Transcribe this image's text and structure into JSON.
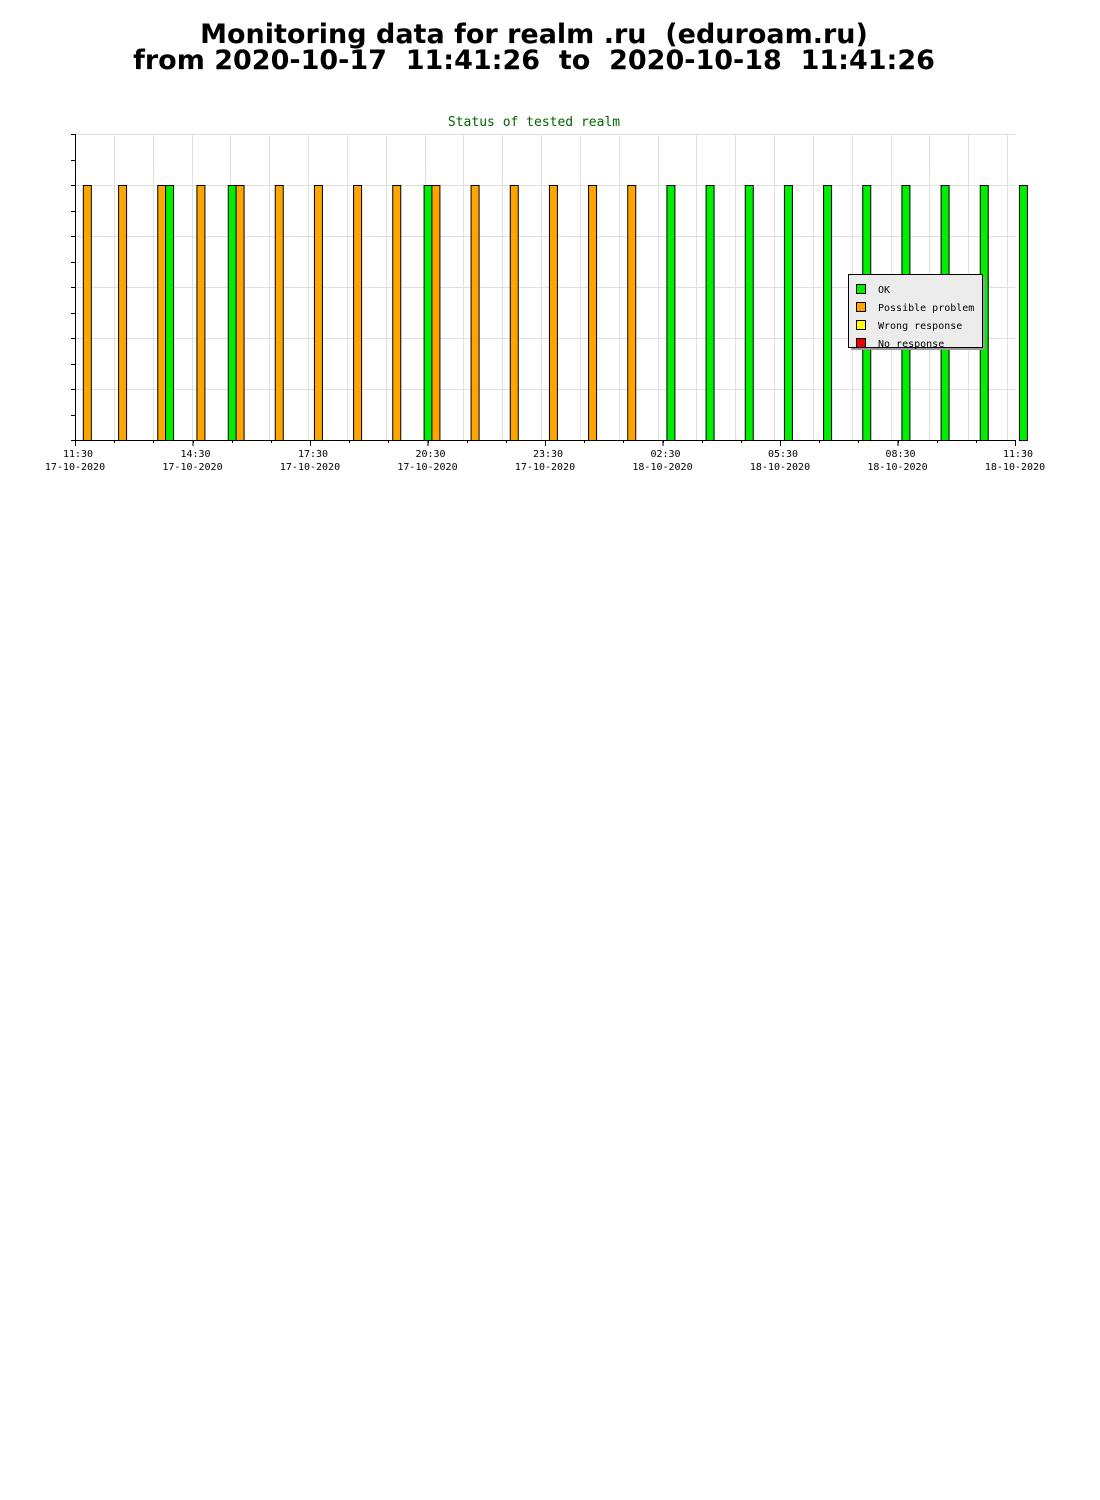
{
  "page": {
    "title_line1": "Monitoring data for realm .ru  (eduroam.ru)",
    "title_line2": "from 2020-10-17  11:41:26  to  2020-10-18  11:41:26"
  },
  "chart_data": {
    "type": "bar",
    "title": "Status of tested realm",
    "x_range_hours": [
      0,
      24
    ],
    "x_tick_hours": [
      0,
      3,
      6,
      9,
      12,
      15,
      18,
      21,
      24
    ],
    "x_tick_labels": [
      {
        "time": "11:30",
        "date": "17-10-2020"
      },
      {
        "time": "14:30",
        "date": "17-10-2020"
      },
      {
        "time": "17:30",
        "date": "17-10-2020"
      },
      {
        "time": "20:30",
        "date": "17-10-2020"
      },
      {
        "time": "23:30",
        "date": "17-10-2020"
      },
      {
        "time": "02:30",
        "date": "18-10-2020"
      },
      {
        "time": "05:30",
        "date": "18-10-2020"
      },
      {
        "time": "08:30",
        "date": "18-10-2020"
      },
      {
        "time": "11:30",
        "date": "18-10-2020"
      }
    ],
    "ylim": [
      0,
      6
    ],
    "grid": true,
    "legend_position": "right",
    "legend": [
      {
        "label": "OK",
        "color": "#00ee00"
      },
      {
        "label": "Possible problem",
        "color": "#ffa500"
      },
      {
        "label": "Wrong response",
        "color": "#ffff00"
      },
      {
        "label": "No response",
        "color": "#ee0000"
      }
    ],
    "bars": [
      {
        "t": 0.2,
        "status": "Possible problem",
        "value": 5
      },
      {
        "t": 1.1,
        "status": "Possible problem",
        "value": 5
      },
      {
        "t": 2.1,
        "status": "Possible problem",
        "value": 5
      },
      {
        "t": 2.3,
        "status": "OK",
        "value": 5
      },
      {
        "t": 3.1,
        "status": "Possible problem",
        "value": 5
      },
      {
        "t": 3.9,
        "status": "OK",
        "value": 5
      },
      {
        "t": 4.1,
        "status": "Possible problem",
        "value": 5
      },
      {
        "t": 5.1,
        "status": "Possible problem",
        "value": 5
      },
      {
        "t": 6.1,
        "status": "Possible problem",
        "value": 5
      },
      {
        "t": 7.1,
        "status": "Possible problem",
        "value": 5
      },
      {
        "t": 8.1,
        "status": "Possible problem",
        "value": 5
      },
      {
        "t": 8.9,
        "status": "OK",
        "value": 5
      },
      {
        "t": 9.1,
        "status": "Possible problem",
        "value": 5
      },
      {
        "t": 10.1,
        "status": "Possible problem",
        "value": 5
      },
      {
        "t": 11.1,
        "status": "Possible problem",
        "value": 5
      },
      {
        "t": 12.1,
        "status": "Possible problem",
        "value": 5
      },
      {
        "t": 13.1,
        "status": "Possible problem",
        "value": 5
      },
      {
        "t": 14.1,
        "status": "Possible problem",
        "value": 5
      },
      {
        "t": 15.1,
        "status": "OK",
        "value": 5
      },
      {
        "t": 16.1,
        "status": "OK",
        "value": 5
      },
      {
        "t": 17.1,
        "status": "OK",
        "value": 5
      },
      {
        "t": 18.1,
        "status": "OK",
        "value": 5
      },
      {
        "t": 19.1,
        "status": "OK",
        "value": 5
      },
      {
        "t": 20.1,
        "status": "OK",
        "value": 5
      },
      {
        "t": 21.1,
        "status": "OK",
        "value": 5
      },
      {
        "t": 22.1,
        "status": "OK",
        "value": 5
      },
      {
        "t": 23.1,
        "status": "OK",
        "value": 5
      },
      {
        "t": 24.1,
        "status": "OK",
        "value": 5
      }
    ]
  }
}
